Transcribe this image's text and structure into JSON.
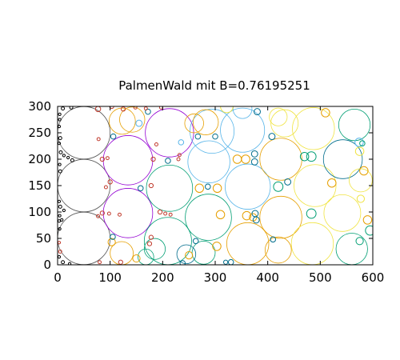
{
  "chart_data": {
    "type": "scatter",
    "title": "PalmenWald mit B=0.76195251",
    "xlabel": "",
    "ylabel": "",
    "xlim": [
      0,
      600
    ],
    "ylim": [
      0,
      300
    ],
    "x_ticks": [
      0,
      100,
      200,
      300,
      400,
      500,
      600
    ],
    "y_ticks": [
      0,
      50,
      100,
      150,
      200,
      250,
      300
    ],
    "grid": false,
    "legend": "none",
    "circles": [
      {
        "x": 50,
        "y": 250,
        "r": 50,
        "color": "#555555"
      },
      {
        "x": 50,
        "y": 150,
        "r": 50,
        "color": "#555555"
      },
      {
        "x": 50,
        "y": 50,
        "r": 50,
        "color": "#555555"
      },
      {
        "x": 134,
        "y": 198,
        "r": 47,
        "color": "#9400d3"
      },
      {
        "x": 134,
        "y": 98,
        "r": 47,
        "color": "#9400d3"
      },
      {
        "x": 213,
        "y": 250,
        "r": 46,
        "color": "#9400d3"
      },
      {
        "x": 213,
        "y": 145,
        "r": 44,
        "color": "#009e73"
      },
      {
        "x": 210,
        "y": 45,
        "r": 45,
        "color": "#009e73"
      },
      {
        "x": 287,
        "y": 90,
        "r": 44,
        "color": "#009e73"
      },
      {
        "x": 294,
        "y": 253,
        "r": 42,
        "color": "#56b4e9"
      },
      {
        "x": 362,
        "y": 148,
        "r": 43,
        "color": "#56b4e9"
      },
      {
        "x": 352,
        "y": 255,
        "r": 42,
        "color": "#56b4e9"
      },
      {
        "x": 288,
        "y": 195,
        "r": 40,
        "color": "#56b4e9"
      },
      {
        "x": 425,
        "y": 200,
        "r": 40,
        "color": "#e69f00"
      },
      {
        "x": 425,
        "y": 90,
        "r": 40,
        "color": "#e69f00"
      },
      {
        "x": 362,
        "y": 40,
        "r": 40,
        "color": "#e69f00"
      },
      {
        "x": 490,
        "y": 150,
        "r": 40,
        "color": "#f0e442"
      },
      {
        "x": 485,
        "y": 40,
        "r": 40,
        "color": "#f0e442"
      },
      {
        "x": 487,
        "y": 258,
        "r": 40,
        "color": "#f0e442"
      },
      {
        "x": 542,
        "y": 98,
        "r": 35,
        "color": "#f0e442"
      },
      {
        "x": 543,
        "y": 200,
        "r": 37,
        "color": "#006d8c"
      },
      {
        "x": 560,
        "y": 30,
        "r": 30,
        "color": "#009e73"
      },
      {
        "x": 565,
        "y": 265,
        "r": 30,
        "color": "#009e73"
      },
      {
        "x": 123,
        "y": 272,
        "r": 25,
        "color": "#e69f00"
      },
      {
        "x": 142,
        "y": 275,
        "r": 24,
        "color": "#e69f00"
      },
      {
        "x": 122,
        "y": 22,
        "r": 22,
        "color": "#e69f00"
      },
      {
        "x": 282,
        "y": 270,
        "r": 24,
        "color": "#e69f00"
      },
      {
        "x": 420,
        "y": 28,
        "r": 25,
        "color": "#e69f00"
      },
      {
        "x": 432,
        "y": 268,
        "r": 26,
        "color": "#f0e442"
      },
      {
        "x": 577,
        "y": 160,
        "r": 22,
        "color": "#f0e442"
      },
      {
        "x": 278,
        "y": 23,
        "r": 22,
        "color": "#009e73"
      },
      {
        "x": 245,
        "y": 20,
        "r": 18,
        "color": "#006d8c"
      },
      {
        "x": 185,
        "y": 30,
        "r": 20,
        "color": "#009e73"
      },
      {
        "x": 352,
        "y": 295,
        "r": 18,
        "color": "#56b4e9"
      },
      {
        "x": 420,
        "y": 280,
        "r": 17,
        "color": "#f0e442"
      },
      {
        "x": 260,
        "y": 268,
        "r": 18,
        "color": "#e69f00"
      },
      {
        "x": 168,
        "y": 15,
        "r": 15,
        "color": "#009e73"
      },
      {
        "x": 322,
        "y": 300,
        "r": 12,
        "color": "#f0e442"
      },
      {
        "x": 470,
        "y": 205,
        "r": 8,
        "color": "#009e73"
      },
      {
        "x": 483,
        "y": 205,
        "r": 9,
        "color": "#009e73"
      },
      {
        "x": 483,
        "y": 97,
        "r": 9,
        "color": "#009e73"
      },
      {
        "x": 420,
        "y": 148,
        "r": 9,
        "color": "#009e73"
      },
      {
        "x": 595,
        "y": 65,
        "r": 9,
        "color": "#009e73"
      },
      {
        "x": 575,
        "y": 45,
        "r": 7,
        "color": "#009e73"
      },
      {
        "x": 574,
        "y": 232,
        "r": 8,
        "color": "#56b4e9"
      },
      {
        "x": 575,
        "y": 215,
        "r": 8,
        "color": "#f0e442"
      },
      {
        "x": 577,
        "y": 125,
        "r": 7,
        "color": "#f0e442"
      },
      {
        "x": 583,
        "y": 178,
        "r": 8,
        "color": "#e69f00"
      },
      {
        "x": 590,
        "y": 85,
        "r": 8,
        "color": "#e69f00"
      },
      {
        "x": 522,
        "y": 155,
        "r": 8,
        "color": "#e69f00"
      },
      {
        "x": 510,
        "y": 288,
        "r": 8,
        "color": "#e69f00"
      },
      {
        "x": 342,
        "y": 200,
        "r": 8,
        "color": "#e69f00"
      },
      {
        "x": 358,
        "y": 200,
        "r": 8,
        "color": "#e69f00"
      },
      {
        "x": 270,
        "y": 145,
        "r": 8,
        "color": "#e69f00"
      },
      {
        "x": 304,
        "y": 145,
        "r": 8,
        "color": "#e69f00"
      },
      {
        "x": 310,
        "y": 95,
        "r": 8,
        "color": "#e69f00"
      },
      {
        "x": 360,
        "y": 93,
        "r": 8,
        "color": "#e69f00"
      },
      {
        "x": 372,
        "y": 90,
        "r": 7,
        "color": "#e69f00"
      },
      {
        "x": 303,
        "y": 35,
        "r": 8,
        "color": "#e69f00"
      },
      {
        "x": 150,
        "y": 12,
        "r": 7,
        "color": "#e69f00"
      },
      {
        "x": 103,
        "y": 43,
        "r": 7,
        "color": "#e69f00"
      },
      {
        "x": 250,
        "y": 18,
        "r": 7,
        "color": "#e69f00"
      },
      {
        "x": 375,
        "y": 210,
        "r": 6,
        "color": "#006d8c"
      },
      {
        "x": 375,
        "y": 195,
        "r": 6,
        "color": "#006d8c"
      },
      {
        "x": 380,
        "y": 290,
        "r": 6,
        "color": "#006d8c"
      },
      {
        "x": 408,
        "y": 243,
        "r": 6,
        "color": "#006d8c"
      },
      {
        "x": 438,
        "y": 157,
        "r": 6,
        "color": "#006d8c"
      },
      {
        "x": 376,
        "y": 97,
        "r": 6,
        "color": "#006d8c"
      },
      {
        "x": 378,
        "y": 85,
        "r": 6,
        "color": "#006d8c"
      },
      {
        "x": 410,
        "y": 48,
        "r": 5,
        "color": "#006d8c"
      },
      {
        "x": 330,
        "y": 5,
        "r": 5,
        "color": "#006d8c"
      },
      {
        "x": 320,
        "y": 5,
        "r": 4,
        "color": "#006d8c"
      },
      {
        "x": 263,
        "y": 45,
        "r": 5,
        "color": "#006d8c"
      },
      {
        "x": 286,
        "y": 148,
        "r": 5,
        "color": "#006d8c"
      },
      {
        "x": 238,
        "y": 3,
        "r": 5,
        "color": "#006d8c"
      },
      {
        "x": 267,
        "y": 243,
        "r": 5,
        "color": "#006d8c"
      },
      {
        "x": 300,
        "y": 243,
        "r": 5,
        "color": "#006d8c"
      },
      {
        "x": 210,
        "y": 197,
        "r": 5,
        "color": "#006d8c"
      },
      {
        "x": 172,
        "y": 290,
        "r": 5,
        "color": "#006d8c"
      },
      {
        "x": 158,
        "y": 145,
        "r": 5,
        "color": "#006d8c"
      },
      {
        "x": 106,
        "y": 243,
        "r": 5,
        "color": "#006d8c"
      },
      {
        "x": 105,
        "y": 53,
        "r": 5,
        "color": "#006d8c"
      },
      {
        "x": 155,
        "y": 268,
        "r": 6,
        "color": "#56b4e9"
      },
      {
        "x": 235,
        "y": 232,
        "r": 5,
        "color": "#56b4e9"
      },
      {
        "x": 580,
        "y": 230,
        "r": 5,
        "color": "#009e73"
      },
      {
        "x": 77,
        "y": 295,
        "r": 5,
        "color": "#c0392b"
      },
      {
        "x": 103,
        "y": 300,
        "r": 4,
        "color": "#c0392b"
      },
      {
        "x": 125,
        "y": 295,
        "r": 4,
        "color": "#c0392b"
      },
      {
        "x": 148,
        "y": 298,
        "r": 3,
        "color": "#c0392b"
      },
      {
        "x": 168,
        "y": 296,
        "r": 3,
        "color": "#c0392b"
      },
      {
        "x": 197,
        "y": 298,
        "r": 3,
        "color": "#c0392b"
      },
      {
        "x": 85,
        "y": 200,
        "r": 4,
        "color": "#c0392b"
      },
      {
        "x": 95,
        "y": 202,
        "r": 3,
        "color": "#c0392b"
      },
      {
        "x": 100,
        "y": 157,
        "r": 4,
        "color": "#c0392b"
      },
      {
        "x": 92,
        "y": 147,
        "r": 3,
        "color": "#c0392b"
      },
      {
        "x": 85,
        "y": 98,
        "r": 4,
        "color": "#c0392b"
      },
      {
        "x": 77,
        "y": 92,
        "r": 3,
        "color": "#c0392b"
      },
      {
        "x": 98,
        "y": 97,
        "r": 3,
        "color": "#c0392b"
      },
      {
        "x": 118,
        "y": 95,
        "r": 3,
        "color": "#c0392b"
      },
      {
        "x": 80,
        "y": 5,
        "r": 3,
        "color": "#c0392b"
      },
      {
        "x": 120,
        "y": 5,
        "r": 4,
        "color": "#c0392b"
      },
      {
        "x": 175,
        "y": 40,
        "r": 4,
        "color": "#c0392b"
      },
      {
        "x": 178,
        "y": 52,
        "r": 4,
        "color": "#c0392b"
      },
      {
        "x": 178,
        "y": 150,
        "r": 4,
        "color": "#c0392b"
      },
      {
        "x": 195,
        "y": 100,
        "r": 4,
        "color": "#c0392b"
      },
      {
        "x": 205,
        "y": 97,
        "r": 3,
        "color": "#c0392b"
      },
      {
        "x": 215,
        "y": 95,
        "r": 3,
        "color": "#c0392b"
      },
      {
        "x": 182,
        "y": 200,
        "r": 4,
        "color": "#c0392b"
      },
      {
        "x": 230,
        "y": 200,
        "r": 3,
        "color": "#c0392b"
      },
      {
        "x": 232,
        "y": 208,
        "r": 3,
        "color": "#c0392b"
      },
      {
        "x": 188,
        "y": 228,
        "r": 3,
        "color": "#c0392b"
      },
      {
        "x": 78,
        "y": 238,
        "r": 3,
        "color": "#c0392b"
      },
      {
        "x": 5,
        "y": 25,
        "r": 3,
        "color": "#c0392b"
      },
      {
        "x": 3,
        "y": 42,
        "r": 2,
        "color": "#c0392b"
      },
      {
        "x": 26,
        "y": 298,
        "r": 3,
        "color": "#000000"
      },
      {
        "x": 10,
        "y": 296,
        "r": 3,
        "color": "#000000"
      },
      {
        "x": 4,
        "y": 285,
        "r": 2,
        "color": "#000000"
      },
      {
        "x": 4,
        "y": 275,
        "r": 2,
        "color": "#000000"
      },
      {
        "x": 3,
        "y": 262,
        "r": 2,
        "color": "#000000"
      },
      {
        "x": 5,
        "y": 240,
        "r": 3,
        "color": "#000000"
      },
      {
        "x": 3,
        "y": 230,
        "r": 2,
        "color": "#000000"
      },
      {
        "x": 6,
        "y": 213,
        "r": 3,
        "color": "#000000"
      },
      {
        "x": 12,
        "y": 207,
        "r": 2,
        "color": "#000000"
      },
      {
        "x": 20,
        "y": 203,
        "r": 2,
        "color": "#000000"
      },
      {
        "x": 28,
        "y": 198,
        "r": 3,
        "color": "#000000"
      },
      {
        "x": 4,
        "y": 190,
        "r": 2,
        "color": "#000000"
      },
      {
        "x": 5,
        "y": 177,
        "r": 3,
        "color": "#000000"
      },
      {
        "x": 3,
        "y": 120,
        "r": 2,
        "color": "#000000"
      },
      {
        "x": 5,
        "y": 110,
        "r": 3,
        "color": "#000000"
      },
      {
        "x": 12,
        "y": 103,
        "r": 2,
        "color": "#000000"
      },
      {
        "x": 4,
        "y": 93,
        "r": 2,
        "color": "#000000"
      },
      {
        "x": 3,
        "y": 83,
        "r": 2,
        "color": "#000000"
      },
      {
        "x": 8,
        "y": 85,
        "r": 2,
        "color": "#000000"
      },
      {
        "x": 4,
        "y": 68,
        "r": 2,
        "color": "#000000"
      },
      {
        "x": 3,
        "y": 15,
        "r": 2,
        "color": "#000000"
      },
      {
        "x": 10,
        "y": 5,
        "r": 3,
        "color": "#000000"
      },
      {
        "x": 23,
        "y": 2,
        "r": 2,
        "color": "#000000"
      }
    ]
  }
}
